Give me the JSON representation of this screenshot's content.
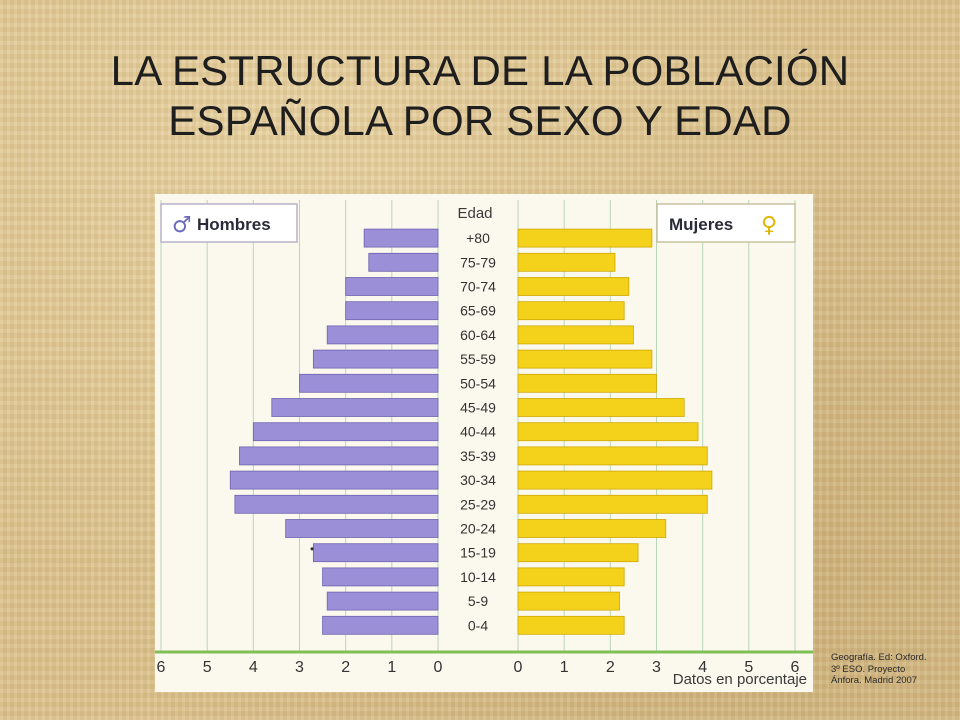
{
  "title": {
    "line1": "LA ESTRUCTURA DE LA POBLACIÓN",
    "line2": "ESPAÑOLA POR SEXO Y EDAD"
  },
  "credit": {
    "line1": "Geografía. Ed: Oxford.",
    "line2": "3º ESO. Proyecto",
    "line3": "Ánfora. Madrid 2007"
  },
  "chart_data": {
    "type": "bar",
    "orientation": "horizontal",
    "subtype": "population pyramid",
    "title": "",
    "xlabel": "Datos en porcentaje",
    "category_label": "Edad",
    "categories": [
      "+80",
      "75-79",
      "70-74",
      "65-69",
      "60-64",
      "55-59",
      "50-54",
      "45-49",
      "40-44",
      "35-39",
      "30-34",
      "25-29",
      "20-24",
      "15-19",
      "10-14",
      "5-9",
      "0-4"
    ],
    "series": [
      {
        "name": "Hombres",
        "side": "left",
        "color": "#9b8fd8",
        "symbol": "♂",
        "values": [
          1.6,
          1.5,
          2.0,
          2.0,
          2.4,
          2.7,
          3.0,
          3.6,
          4.0,
          4.3,
          4.5,
          4.4,
          3.3,
          2.7,
          2.5,
          2.4,
          2.5
        ]
      },
      {
        "name": "Mujeres",
        "side": "right",
        "color": "#f4d21c",
        "symbol": "♀",
        "values": [
          2.9,
          2.1,
          2.4,
          2.3,
          2.5,
          2.9,
          3.0,
          3.6,
          3.9,
          4.1,
          4.2,
          4.1,
          3.2,
          2.6,
          2.3,
          2.2,
          2.3
        ]
      }
    ],
    "xticks_left": [
      6,
      5,
      4,
      3,
      2,
      1,
      0
    ],
    "xticks_right": [
      0,
      1,
      2,
      3,
      4,
      5,
      6
    ],
    "xlim": [
      0,
      6
    ],
    "grid": true,
    "legend": "top-left and top-right labels",
    "annotation": "•"
  }
}
